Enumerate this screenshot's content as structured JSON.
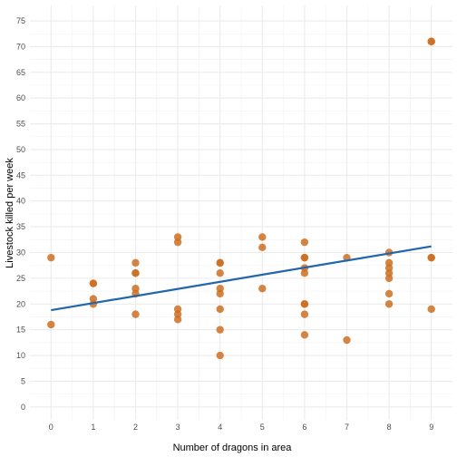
{
  "chart_data": {
    "type": "scatter",
    "title": "",
    "xlabel": "Number of dragons in area",
    "ylabel": "Livestock killed per week",
    "xlim": [
      -0.5,
      9.5
    ],
    "ylim": [
      -2.5,
      78
    ],
    "x_ticks": [
      0,
      1,
      2,
      3,
      4,
      5,
      6,
      7,
      8,
      9
    ],
    "y_ticks": [
      0,
      5,
      10,
      15,
      20,
      25,
      30,
      35,
      40,
      45,
      50,
      55,
      60,
      65,
      70,
      75
    ],
    "grid": true,
    "point_color": "#cc6f22",
    "line_color": "#2166ac",
    "points": [
      {
        "x": 0,
        "y": 29
      },
      {
        "x": 0,
        "y": 16
      },
      {
        "x": 1,
        "y": 24
      },
      {
        "x": 1,
        "y": 24
      },
      {
        "x": 1,
        "y": 21
      },
      {
        "x": 1,
        "y": 20
      },
      {
        "x": 2,
        "y": 28
      },
      {
        "x": 2,
        "y": 26
      },
      {
        "x": 2,
        "y": 26
      },
      {
        "x": 2,
        "y": 23
      },
      {
        "x": 2,
        "y": 22
      },
      {
        "x": 2,
        "y": 18
      },
      {
        "x": 3,
        "y": 33
      },
      {
        "x": 3,
        "y": 32
      },
      {
        "x": 3,
        "y": 19
      },
      {
        "x": 3,
        "y": 18
      },
      {
        "x": 3,
        "y": 17
      },
      {
        "x": 4,
        "y": 28
      },
      {
        "x": 4,
        "y": 28
      },
      {
        "x": 4,
        "y": 26
      },
      {
        "x": 4,
        "y": 23
      },
      {
        "x": 4,
        "y": 22
      },
      {
        "x": 4,
        "y": 19
      },
      {
        "x": 4,
        "y": 15
      },
      {
        "x": 4,
        "y": 10
      },
      {
        "x": 5,
        "y": 33
      },
      {
        "x": 5,
        "y": 31
      },
      {
        "x": 5,
        "y": 23
      },
      {
        "x": 6,
        "y": 32
      },
      {
        "x": 6,
        "y": 29
      },
      {
        "x": 6,
        "y": 29
      },
      {
        "x": 6,
        "y": 27
      },
      {
        "x": 6,
        "y": 26
      },
      {
        "x": 6,
        "y": 20
      },
      {
        "x": 6,
        "y": 20
      },
      {
        "x": 6,
        "y": 18
      },
      {
        "x": 6,
        "y": 14
      },
      {
        "x": 7,
        "y": 29
      },
      {
        "x": 7,
        "y": 13
      },
      {
        "x": 8,
        "y": 30
      },
      {
        "x": 8,
        "y": 28
      },
      {
        "x": 8,
        "y": 27
      },
      {
        "x": 8,
        "y": 26
      },
      {
        "x": 8,
        "y": 25
      },
      {
        "x": 8,
        "y": 22
      },
      {
        "x": 8,
        "y": 20
      },
      {
        "x": 9,
        "y": 71
      },
      {
        "x": 9,
        "y": 71
      },
      {
        "x": 9,
        "y": 29
      },
      {
        "x": 9,
        "y": 29
      },
      {
        "x": 9,
        "y": 19
      }
    ],
    "trend_line": {
      "x": [
        0,
        9
      ],
      "y": [
        18.8,
        31.2
      ]
    }
  }
}
